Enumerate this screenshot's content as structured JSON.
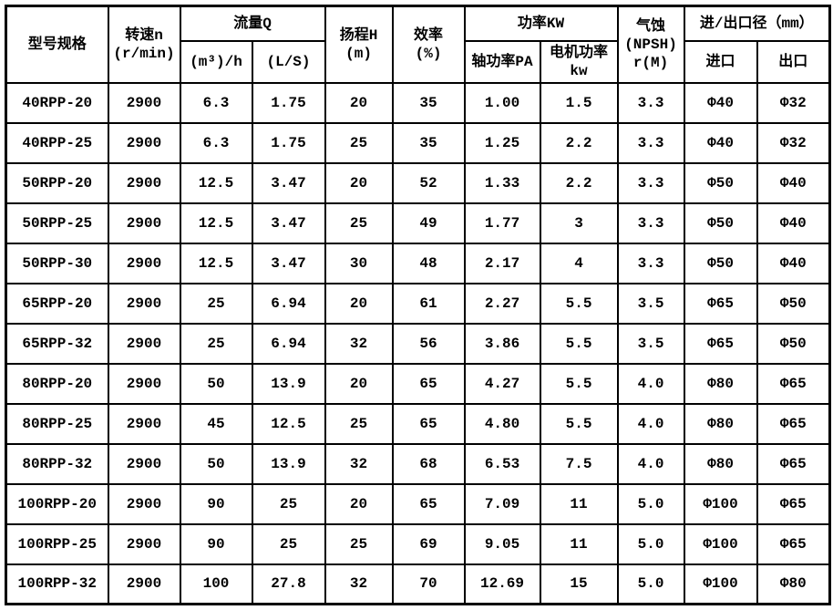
{
  "colors": {
    "background": "#ffffff",
    "border": "#000000",
    "text": "#000000"
  },
  "table": {
    "header": {
      "model": "型号规格",
      "speed": "转速n\n(r/min)",
      "flow_group": "流量Q",
      "flow_m3h": "(m³)/h",
      "flow_ls": "(L/S)",
      "head": "扬程H\n(m)",
      "efficiency": "效率\n(%)",
      "power_group": "功率KW",
      "shaft_power": "轴功率PA",
      "motor_power": "电机功率\nkw",
      "npsh": "气蚀\n(NPSH)\nr(M)",
      "io_group": "进/出口径（mm）",
      "inlet": "进口",
      "outlet": "出口"
    },
    "column_keys": [
      "model",
      "speed",
      "flow-m3h",
      "flow-ls",
      "head",
      "efficiency",
      "shaft-power",
      "motor-power",
      "npsh",
      "inlet",
      "outlet"
    ]
  },
  "chart_data": {
    "type": "table",
    "columns": [
      "型号规格",
      "转速n(r/min)",
      "流量Q (m³)/h",
      "流量Q (L/S)",
      "扬程H(m)",
      "效率(%)",
      "功率KW 轴功率PA",
      "功率KW 电机功率kw",
      "气蚀(NPSH)r(M)",
      "进口径(mm)",
      "出口径(mm)"
    ],
    "rows": [
      [
        "40RPP-20",
        "2900",
        "6.3",
        "1.75",
        "20",
        "35",
        "1.00",
        "1.5",
        "3.3",
        "Φ40",
        "Φ32"
      ],
      [
        "40RPP-25",
        "2900",
        "6.3",
        "1.75",
        "25",
        "35",
        "1.25",
        "2.2",
        "3.3",
        "Φ40",
        "Φ32"
      ],
      [
        "50RPP-20",
        "2900",
        "12.5",
        "3.47",
        "20",
        "52",
        "1.33",
        "2.2",
        "3.3",
        "Φ50",
        "Φ40"
      ],
      [
        "50RPP-25",
        "2900",
        "12.5",
        "3.47",
        "25",
        "49",
        "1.77",
        "3",
        "3.3",
        "Φ50",
        "Φ40"
      ],
      [
        "50RPP-30",
        "2900",
        "12.5",
        "3.47",
        "30",
        "48",
        "2.17",
        "4",
        "3.3",
        "Φ50",
        "Φ40"
      ],
      [
        "65RPP-20",
        "2900",
        "25",
        "6.94",
        "20",
        "61",
        "2.27",
        "5.5",
        "3.5",
        "Φ65",
        "Φ50"
      ],
      [
        "65RPP-32",
        "2900",
        "25",
        "6.94",
        "32",
        "56",
        "3.86",
        "5.5",
        "3.5",
        "Φ65",
        "Φ50"
      ],
      [
        "80RPP-20",
        "2900",
        "50",
        "13.9",
        "20",
        "65",
        "4.27",
        "5.5",
        "4.0",
        "Φ80",
        "Φ65"
      ],
      [
        "80RPP-25",
        "2900",
        "45",
        "12.5",
        "25",
        "65",
        "4.80",
        "5.5",
        "4.0",
        "Φ80",
        "Φ65"
      ],
      [
        "80RPP-32",
        "2900",
        "50",
        "13.9",
        "32",
        "68",
        "6.53",
        "7.5",
        "4.0",
        "Φ80",
        "Φ65"
      ],
      [
        "100RPP-20",
        "2900",
        "90",
        "25",
        "20",
        "65",
        "7.09",
        "11",
        "5.0",
        "Φ100",
        "Φ65"
      ],
      [
        "100RPP-25",
        "2900",
        "90",
        "25",
        "25",
        "69",
        "9.05",
        "11",
        "5.0",
        "Φ100",
        "Φ65"
      ],
      [
        "100RPP-32",
        "2900",
        "100",
        "27.8",
        "32",
        "70",
        "12.69",
        "15",
        "5.0",
        "Φ100",
        "Φ80"
      ]
    ]
  }
}
